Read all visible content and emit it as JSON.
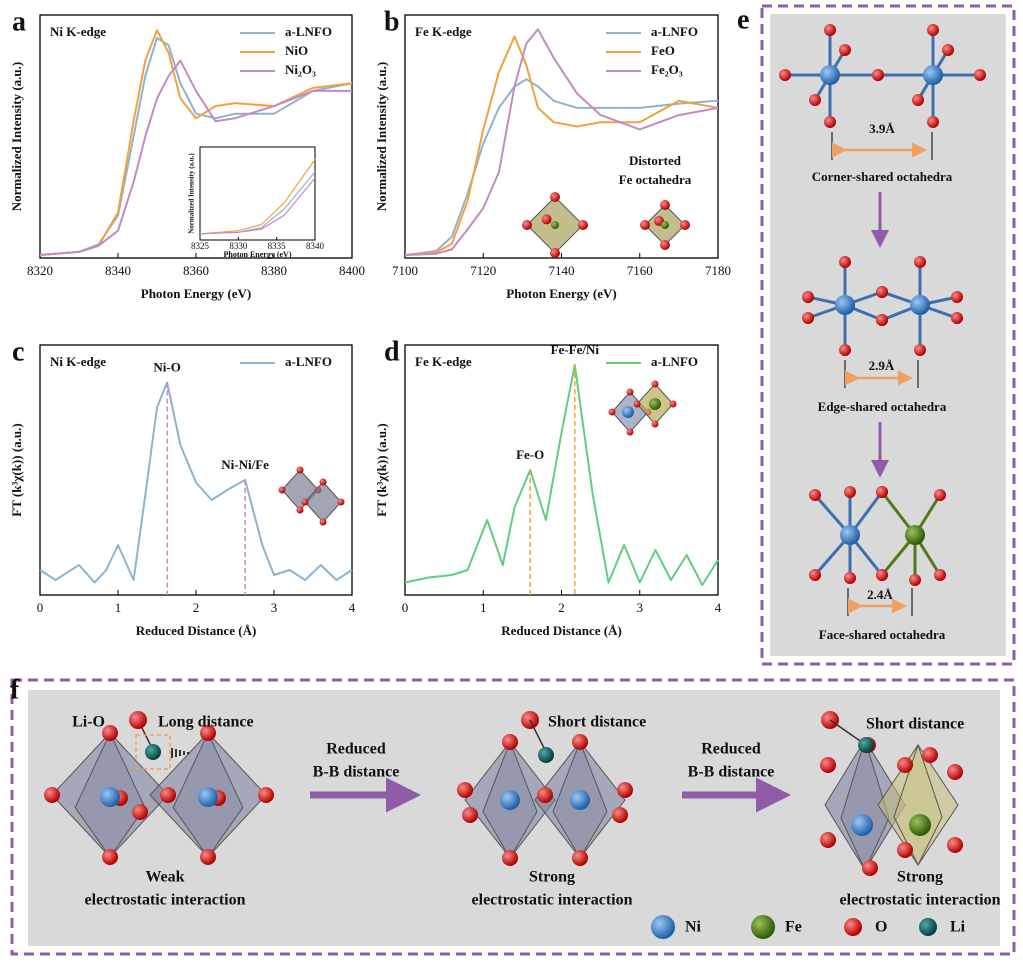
{
  "panel_labels": [
    "a",
    "b",
    "c",
    "d",
    "e",
    "f"
  ],
  "chart_data": [
    {
      "type": "line",
      "title": "Ni K-edge",
      "xlabel": "Photon Energy (eV)",
      "ylabel": "Normalized Intensity (a.u.)",
      "x": [
        8320,
        8330,
        8335,
        8340,
        8344,
        8347,
        8350,
        8353,
        8356,
        8360,
        8365,
        8370,
        8380,
        8390,
        8400
      ],
      "series": [
        {
          "name": "a-LNFO",
          "color": "#8db3d3",
          "values": [
            0.02,
            0.04,
            0.09,
            0.28,
            0.8,
            1.2,
            1.45,
            1.4,
            1.15,
            0.95,
            0.92,
            0.95,
            0.95,
            1.1,
            1.15
          ]
        },
        {
          "name": "NiO",
          "color": "#f4a13a",
          "values": [
            0.02,
            0.04,
            0.08,
            0.3,
            0.9,
            1.3,
            1.5,
            1.35,
            1.05,
            0.92,
            1.0,
            1.02,
            1.0,
            1.12,
            1.15
          ]
        },
        {
          "name": "Ni₂O₃",
          "color": "#c58ac6",
          "values": [
            0.02,
            0.04,
            0.08,
            0.18,
            0.5,
            0.8,
            1.05,
            1.2,
            1.3,
            1.1,
            0.9,
            0.92,
            1.0,
            1.1,
            1.1
          ]
        }
      ],
      "xlim": [
        8320,
        8400
      ],
      "xticks": [
        8320,
        8340,
        8360,
        8380,
        8400
      ],
      "ylim": [
        0,
        1.6
      ],
      "legend": "upper right"
    },
    {
      "type": "line",
      "title": "Fe K-edge",
      "xlabel": "Photon Energy (eV)",
      "ylabel": "Normalized Intensity (a.u.)",
      "x": [
        7100,
        7108,
        7112,
        7116,
        7120,
        7124,
        7128,
        7131,
        7134,
        7138,
        7144,
        7150,
        7160,
        7170,
        7180
      ],
      "series": [
        {
          "name": "a-LNFO",
          "color": "#8db3d3",
          "values": [
            0.02,
            0.05,
            0.15,
            0.45,
            0.8,
            1.05,
            1.2,
            1.25,
            1.2,
            1.1,
            1.05,
            1.05,
            1.05,
            1.08,
            1.1
          ]
        },
        {
          "name": "FeO",
          "color": "#f4a13a",
          "values": [
            0.02,
            0.04,
            0.1,
            0.4,
            0.9,
            1.3,
            1.55,
            1.35,
            1.05,
            0.95,
            0.92,
            0.95,
            0.95,
            1.1,
            1.05
          ]
        },
        {
          "name": "Fe₂O₃",
          "color": "#c58ac6",
          "values": [
            0.02,
            0.03,
            0.06,
            0.2,
            0.35,
            0.6,
            1.2,
            1.5,
            1.6,
            1.4,
            1.15,
            1.0,
            0.9,
            1.0,
            1.05
          ]
        }
      ],
      "xlim": [
        7100,
        7180
      ],
      "xticks": [
        7100,
        7120,
        7140,
        7160,
        7180
      ],
      "ylim": [
        0,
        1.7
      ],
      "legend": "upper right",
      "note": [
        "Distorted",
        "Fe octahedra"
      ]
    },
    {
      "type": "line",
      "title": "Ni K-edge",
      "xlabel": "Reduced Distance (Å)",
      "ylabel": "FT (k³χ(k)) (a.u.)",
      "x": [
        0,
        0.2,
        0.4,
        0.5,
        0.7,
        0.85,
        1.0,
        1.2,
        1.35,
        1.5,
        1.63,
        1.8,
        2.0,
        2.2,
        2.4,
        2.63,
        2.85,
        3.0,
        3.2,
        3.4,
        3.6,
        3.8,
        4.0
      ],
      "series": [
        {
          "name": "a-LNFO",
          "color": "#8db3d3",
          "values": [
            0.1,
            0.06,
            0.1,
            0.12,
            0.05,
            0.1,
            0.2,
            0.06,
            0.4,
            0.75,
            0.85,
            0.6,
            0.45,
            0.38,
            0.42,
            0.46,
            0.2,
            0.08,
            0.1,
            0.06,
            0.12,
            0.06,
            0.1
          ]
        }
      ],
      "xlim": [
        0,
        4
      ],
      "xticks": [
        0,
        1,
        2,
        3,
        4
      ],
      "ylim": [
        0,
        1
      ],
      "legend": "upper right",
      "annotations": [
        {
          "text": "Ni-O",
          "x": 1.63,
          "color": "#c58ac6"
        },
        {
          "text": "Ni-Ni/Fe",
          "x": 2.63,
          "color": "#c58ac6"
        }
      ]
    },
    {
      "type": "line",
      "title": "Fe K-edge",
      "xlabel": "Reduced Distance (Å)",
      "ylabel": "FT (k³χ(k)) (a.u.)",
      "x": [
        0,
        0.3,
        0.6,
        0.8,
        1.05,
        1.25,
        1.4,
        1.6,
        1.8,
        2.0,
        2.17,
        2.4,
        2.6,
        2.8,
        3.0,
        3.2,
        3.4,
        3.6,
        3.8,
        4.0
      ],
      "series": [
        {
          "name": "a-LNFO",
          "color": "#5fcf7f",
          "values": [
            0.05,
            0.07,
            0.08,
            0.1,
            0.3,
            0.12,
            0.35,
            0.5,
            0.3,
            0.65,
            0.92,
            0.4,
            0.05,
            0.2,
            0.05,
            0.18,
            0.06,
            0.16,
            0.04,
            0.14
          ]
        }
      ],
      "xlim": [
        0,
        4
      ],
      "xticks": [
        0,
        1,
        2,
        3,
        4
      ],
      "ylim": [
        0,
        1
      ],
      "legend": "upper right",
      "annotations": [
        {
          "text": "Fe-O",
          "x": 1.6,
          "color": "#f4a13a"
        },
        {
          "text": "Fe-Fe/Ni",
          "x": 2.17,
          "color": "#f4a13a"
        }
      ]
    },
    {
      "type": "line",
      "xlabel": "Photon Energy (eV)",
      "ylabel": "Normalized Intensity (a.u.)",
      "x": [
        8325,
        8330,
        8333,
        8336,
        8340
      ],
      "series": [
        {
          "name": "a-LNFO",
          "color": "#8db3d3",
          "values": [
            0.02,
            0.025,
            0.04,
            0.1,
            0.22
          ]
        },
        {
          "name": "NiO",
          "color": "#f4a13a",
          "values": [
            0.02,
            0.03,
            0.05,
            0.12,
            0.26
          ]
        },
        {
          "name": "Ni₂O₃",
          "color": "#c58ac6",
          "values": [
            0.02,
            0.025,
            0.035,
            0.08,
            0.2
          ]
        }
      ],
      "xlim": [
        8325,
        8340
      ],
      "xticks": [
        8325,
        8330,
        8335,
        8340
      ],
      "ylim": [
        0,
        0.3
      ]
    }
  ],
  "panel_e": {
    "distances": [
      "3.9Å",
      "2.9Å",
      "2.4Å"
    ],
    "captions": [
      "Corner-shared octahedra",
      "Edge-shared octahedra",
      "Face-shared octahedra"
    ]
  },
  "panel_f": {
    "labels": [
      "Li-O",
      "Long distance",
      "Short distance",
      "Short distance"
    ],
    "arrows": [
      [
        "Reduced",
        "B-B distance"
      ],
      [
        "Reduced",
        "B-B distance"
      ]
    ],
    "captions": [
      [
        "Weak",
        "electrostatic interaction"
      ],
      [
        "Strong",
        "electrostatic interaction"
      ],
      [
        "Strong",
        "electrostatic interaction"
      ]
    ],
    "legend": [
      "Ni",
      "Fe",
      "O",
      "Li"
    ]
  }
}
